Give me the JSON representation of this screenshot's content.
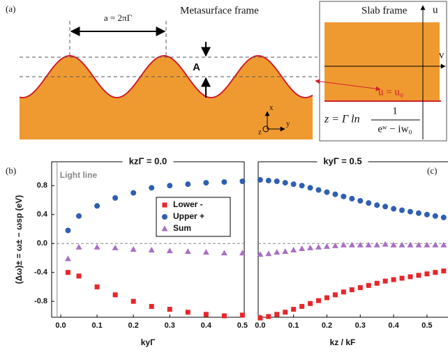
{
  "figure_a": {
    "label": "(a)",
    "period": "a = 2πΓ",
    "amplitude": "A",
    "left_title": "Metasurface frame",
    "right_title": "Slab frame",
    "u": "u",
    "v": "v",
    "boundary": "u = u₀",
    "formula": "z = Γ ln",
    "numerator": "1",
    "denominator": "eʷ − iw₀",
    "axis_x": "x",
    "axis_y": "y",
    "axis_z": "z"
  },
  "chart_data": [
    {
      "type": "scatter",
      "panel_label": "(b)",
      "title": "kzΓ = 0.0",
      "x_label": "kyΓ",
      "y_label": "(Δω)± = ω± − ωsp (eV)",
      "annotation": "Light line",
      "light_line_x": -0.01,
      "zero_line": true,
      "legend": "upper center",
      "xlim": [
        -0.025,
        0.505
      ],
      "xticks": [
        {
          "value": 0,
          "label": "0.0"
        },
        0.1,
        0.2,
        0.3,
        0.4,
        0.5
      ],
      "ylim": [
        -1.02,
        1.13
      ],
      "yticks": [
        0.8,
        0.4,
        {
          "value": 0,
          "label": "0.0"
        },
        -0.4,
        -0.8
      ],
      "x": [
        0.02,
        0.05,
        0.1,
        0.15,
        0.2,
        0.25,
        0.3,
        0.35,
        0.4,
        0.45,
        0.5
      ],
      "series": [
        {
          "name": "Lower -",
          "color": "#e8262a",
          "marker": "square",
          "values": [
            -0.4,
            -0.45,
            -0.6,
            -0.71,
            -0.8,
            -0.87,
            -0.91,
            -0.95,
            -0.98,
            -1.0,
            -0.99
          ]
        },
        {
          "name": "Upper +",
          "color": "#2f5fb0",
          "marker": "circle",
          "values": [
            0.18,
            0.38,
            0.52,
            0.63,
            0.7,
            0.77,
            0.8,
            0.82,
            0.84,
            0.85,
            0.86
          ]
        },
        {
          "name": "Sum",
          "color": "#a86fc2",
          "marker": "triangle",
          "values": [
            -0.21,
            -0.05,
            -0.05,
            -0.06,
            -0.08,
            -0.09,
            -0.1,
            -0.11,
            -0.12,
            -0.13,
            -0.13
          ]
        }
      ]
    },
    {
      "type": "scatter",
      "panel_label": "(c)",
      "title": "kyΓ = 0.5",
      "x_label": "kz / kF",
      "zero_line": true,
      "xlim": [
        -0.006,
        0.563
      ],
      "xticks": [
        {
          "value": 0,
          "label": "0.0"
        },
        0.1,
        0.2,
        0.3,
        0.4,
        0.5
      ],
      "ylim": [
        -1.02,
        1.13
      ],
      "x": [
        0,
        0.025,
        0.05,
        0.075,
        0.1,
        0.125,
        0.15,
        0.175,
        0.2,
        0.225,
        0.25,
        0.275,
        0.3,
        0.325,
        0.35,
        0.375,
        0.4,
        0.425,
        0.45,
        0.475,
        0.5,
        0.525,
        0.55
      ],
      "series": [
        {
          "color": "#e8262a",
          "marker": "square",
          "values": [
            -1.03,
            -1.01,
            -0.98,
            -0.95,
            -0.91,
            -0.87,
            -0.83,
            -0.79,
            -0.75,
            -0.71,
            -0.67,
            -0.64,
            -0.61,
            -0.58,
            -0.55,
            -0.52,
            -0.5,
            -0.48,
            -0.46,
            -0.44,
            -0.42,
            -0.4,
            -0.38
          ]
        },
        {
          "color": "#2f5fb0",
          "marker": "circle",
          "values": [
            0.88,
            0.87,
            0.86,
            0.84,
            0.82,
            0.8,
            0.77,
            0.74,
            0.71,
            0.68,
            0.65,
            0.62,
            0.59,
            0.56,
            0.53,
            0.51,
            0.48,
            0.46,
            0.44,
            0.42,
            0.4,
            0.38,
            0.36
          ]
        },
        {
          "color": "#a86fc2",
          "marker": "triangle",
          "values": [
            -0.15,
            -0.14,
            -0.12,
            -0.11,
            -0.09,
            -0.07,
            -0.06,
            -0.05,
            -0.04,
            -0.03,
            -0.02,
            -0.02,
            -0.02,
            -0.02,
            -0.02,
            -0.01,
            -0.02,
            -0.02,
            -0.02,
            -0.02,
            -0.02,
            -0.02,
            -0.02
          ]
        }
      ]
    }
  ]
}
